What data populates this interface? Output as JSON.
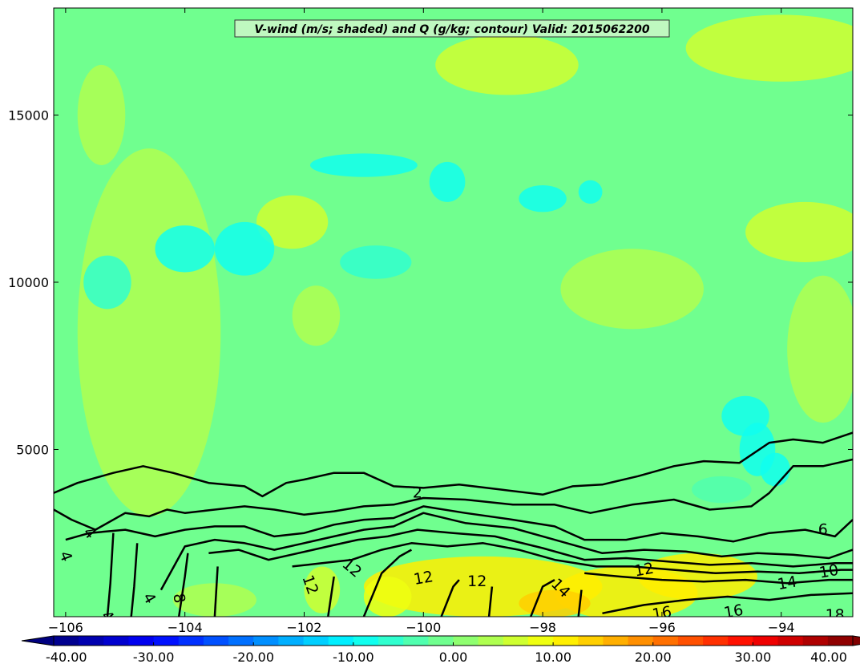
{
  "chart_data": {
    "type": "heatmap",
    "title": "V-wind (m/s; shaded) and Q (g/kg; contour) Valid: 2015062200",
    "xlabel": "",
    "ylabel": "",
    "xlim": [
      -106.2,
      -92.8
    ],
    "ylim": [
      0,
      18200
    ],
    "x_ticks": [
      -106,
      -104,
      -102,
      -100,
      -98,
      -96,
      -94
    ],
    "x_tick_labels": [
      "−106",
      "−104",
      "−102",
      "−100",
      "−98",
      "−96",
      "−94"
    ],
    "y_ticks": [
      5000,
      10000,
      15000
    ],
    "y_tick_labels": [
      "5000",
      "10000",
      "15000"
    ],
    "colorbar": {
      "min": -40,
      "max": 40,
      "step": 2.5,
      "extend": "both",
      "ticks": [
        -40,
        -30,
        -20,
        -10,
        0,
        10,
        20,
        30,
        40
      ],
      "tick_labels": [
        "-40.00",
        "-30.00",
        "-20.00",
        "-10.00",
        "0.00",
        "10.00",
        "20.00",
        "30.00",
        "40.00"
      ],
      "colormap": "jet"
    },
    "shading_background_value": -2,
    "shading_features": [
      {
        "x": -104.6,
        "y": 8500,
        "rx": 1.2,
        "ry": 5500,
        "value": 3
      },
      {
        "x": -102.2,
        "y": 11800,
        "rx": 0.6,
        "ry": 800,
        "value": 5
      },
      {
        "x": -101.8,
        "y": 9000,
        "rx": 0.4,
        "ry": 900,
        "value": 4
      },
      {
        "x": -98.6,
        "y": 16500,
        "rx": 1.2,
        "ry": 900,
        "value": 5
      },
      {
        "x": -96.5,
        "y": 9800,
        "rx": 1.2,
        "ry": 1200,
        "value": 3
      },
      {
        "x": -94.0,
        "y": 17000,
        "rx": 1.6,
        "ry": 1000,
        "value": 5
      },
      {
        "x": -93.6,
        "y": 11500,
        "rx": 1.0,
        "ry": 900,
        "value": 6
      },
      {
        "x": -93.3,
        "y": 8000,
        "rx": 0.6,
        "ry": 2200,
        "value": 4
      },
      {
        "x": -105.4,
        "y": 15000,
        "rx": 0.4,
        "ry": 1500,
        "value": 4
      },
      {
        "x": -101.0,
        "y": 13500,
        "rx": 0.9,
        "ry": 350,
        "value": -8
      },
      {
        "x": -99.6,
        "y": 13000,
        "rx": 0.3,
        "ry": 600,
        "value": -8
      },
      {
        "x": -98.0,
        "y": 12500,
        "rx": 0.4,
        "ry": 400,
        "value": -9
      },
      {
        "x": -97.2,
        "y": 12700,
        "rx": 0.2,
        "ry": 350,
        "value": -8
      },
      {
        "x": -104.0,
        "y": 11000,
        "rx": 0.5,
        "ry": 700,
        "value": -8
      },
      {
        "x": -103.0,
        "y": 11000,
        "rx": 0.5,
        "ry": 800,
        "value": -8
      },
      {
        "x": -105.3,
        "y": 10000,
        "rx": 0.4,
        "ry": 800,
        "value": -7
      },
      {
        "x": -100.8,
        "y": 10600,
        "rx": 0.6,
        "ry": 500,
        "value": -6
      },
      {
        "x": -94.6,
        "y": 6000,
        "rx": 0.4,
        "ry": 600,
        "value": -9
      },
      {
        "x": -94.4,
        "y": 5000,
        "rx": 0.3,
        "ry": 800,
        "value": -10
      },
      {
        "x": -94.1,
        "y": 4400,
        "rx": 0.25,
        "ry": 500,
        "value": -9
      },
      {
        "x": -95.0,
        "y": 3800,
        "rx": 0.5,
        "ry": 400,
        "value": -3
      },
      {
        "x": -99.0,
        "y": 900,
        "rx": 2.0,
        "ry": 900,
        "value": 11
      },
      {
        "x": -96.6,
        "y": 700,
        "rx": 1.2,
        "ry": 800,
        "value": 12
      },
      {
        "x": -95.4,
        "y": 1200,
        "rx": 1.0,
        "ry": 700,
        "value": 10
      },
      {
        "x": -100.6,
        "y": 600,
        "rx": 0.4,
        "ry": 600,
        "value": 8
      },
      {
        "x": -101.7,
        "y": 800,
        "rx": 0.3,
        "ry": 700,
        "value": 6
      },
      {
        "x": -103.5,
        "y": 500,
        "rx": 0.7,
        "ry": 500,
        "value": 3
      },
      {
        "x": -97.8,
        "y": 400,
        "rx": 0.6,
        "ry": 400,
        "value": 14
      }
    ],
    "contour_lines": [
      {
        "level": 2,
        "x": [
          -106.2,
          -105.8,
          -105.2,
          -104.7,
          -104.2,
          -103.6,
          -103.0,
          -102.7,
          -102.3,
          -102.0,
          -101.5,
          -101.0,
          -100.5,
          -100.0,
          -99.4,
          -98.7,
          -98.0,
          -97.5,
          -97.0,
          -96.4,
          -95.8,
          -95.3,
          -94.7,
          -94.2,
          -93.8,
          -93.3,
          -92.8
        ],
        "y": [
          3700,
          4000,
          4300,
          4500,
          4300,
          4000,
          3900,
          3600,
          4000,
          4100,
          4300,
          4300,
          3900,
          3850,
          3950,
          3800,
          3650,
          3900,
          3950,
          4200,
          4500,
          4650,
          4600,
          5200,
          5300,
          5200,
          5500
        ]
      },
      {
        "level": 4,
        "x": [
          -106.2,
          -105.9,
          -105.5,
          -105.0,
          -104.6,
          -104.3,
          -104.0,
          -103.5,
          -103.0,
          -102.5,
          -102.0,
          -101.5,
          -101.0,
          -100.5,
          -100.0,
          -99.3,
          -98.5,
          -97.8,
          -97.2,
          -96.5,
          -95.8,
          -95.2,
          -94.5,
          -94.2,
          -93.8,
          -93.3,
          -92.8
        ],
        "y": [
          3200,
          2900,
          2600,
          3100,
          3000,
          3200,
          3100,
          3200,
          3300,
          3200,
          3050,
          3150,
          3300,
          3350,
          3550,
          3500,
          3350,
          3350,
          3100,
          3350,
          3500,
          3200,
          3300,
          3700,
          4500,
          4500,
          4700
        ]
      },
      {
        "level": 6,
        "x": [
          -106.0,
          -105.6,
          -105.0,
          -104.5,
          -104.0,
          -103.5,
          -103.0,
          -102.5,
          -102.0,
          -101.5,
          -101.0,
          -100.5,
          -100.0,
          -99.3,
          -98.5,
          -97.8,
          -97.3,
          -96.6,
          -96.0,
          -95.4,
          -94.8,
          -94.2,
          -93.6,
          -93.1,
          -92.8
        ],
        "y": [
          2300,
          2500,
          2600,
          2400,
          2600,
          2700,
          2700,
          2400,
          2500,
          2750,
          2900,
          2950,
          3300,
          3100,
          2900,
          2700,
          2300,
          2300,
          2500,
          2400,
          2250,
          2500,
          2600,
          2400,
          2900
        ]
      },
      {
        "level": 8,
        "x": [
          -104.4,
          -104.0,
          -103.5,
          -103.0,
          -102.5,
          -102.0,
          -101.5,
          -101.0,
          -100.5,
          -100.0,
          -99.3,
          -98.5,
          -97.8,
          -97.0,
          -96.3,
          -95.6,
          -95.0,
          -94.4,
          -93.8,
          -93.2,
          -92.8
        ],
        "y": [
          800,
          2100,
          2300,
          2200,
          2000,
          2200,
          2400,
          2600,
          2700,
          3100,
          2800,
          2650,
          2300,
          1900,
          2000,
          1950,
          1800,
          1900,
          1850,
          1750,
          2000
        ]
      },
      {
        "level": 10,
        "x": [
          -103.6,
          -103.1,
          -102.6,
          -102.1,
          -101.6,
          -101.1,
          -100.6,
          -100.1,
          -99.5,
          -98.8,
          -98.0,
          -97.3,
          -96.6,
          -95.9,
          -95.2,
          -94.5,
          -93.8,
          -93.1,
          -92.8
        ],
        "y": [
          1900,
          2000,
          1700,
          1900,
          2100,
          2300,
          2400,
          2600,
          2500,
          2400,
          2050,
          1700,
          1750,
          1650,
          1550,
          1600,
          1500,
          1600,
          1600
        ]
      },
      {
        "level": 12,
        "x": [
          -102.2,
          -101.7,
          -101.2,
          -100.7,
          -100.2,
          -99.6,
          -99.0,
          -98.4,
          -97.8,
          -97.1,
          -96.5,
          -95.8,
          -95.1,
          -94.4,
          -93.7,
          -93.0,
          -92.8
        ],
        "y": [
          1500,
          1600,
          1700,
          2000,
          2200,
          2100,
          2200,
          2000,
          1700,
          1500,
          1500,
          1400,
          1300,
          1350,
          1300,
          1400,
          1400
        ]
      },
      {
        "level": 14,
        "x": [
          -97.3,
          -96.7,
          -96.0,
          -95.3,
          -94.6,
          -93.9,
          -93.2,
          -92.8
        ],
        "y": [
          1300,
          1200,
          1100,
          1050,
          1100,
          1000,
          1100,
          1100
        ]
      },
      {
        "level": 16,
        "x": [
          -97.0,
          -96.3,
          -95.6,
          -94.9,
          -94.2,
          -93.5,
          -92.8
        ],
        "y": [
          100,
          350,
          500,
          600,
          500,
          650,
          700
        ]
      },
      {
        "level": 12,
        "x": [
          -101.0,
          -100.7,
          -100.4,
          -100.2
        ],
        "y": [
          0,
          1300,
          1800,
          2000
        ]
      },
      {
        "level": 12,
        "x": [
          -99.7,
          -99.5,
          -99.4
        ],
        "y": [
          0,
          900,
          1100
        ]
      },
      {
        "level": 14,
        "x": [
          -98.2,
          -98.0,
          -97.8
        ],
        "y": [
          0,
          900,
          1100
        ]
      },
      {
        "level": 4,
        "x": [
          -105.3,
          -105.25,
          -105.2
        ],
        "y": [
          0,
          1000,
          2500
        ]
      },
      {
        "level": 4,
        "x": [
          -104.9,
          -104.85,
          -104.8
        ],
        "y": [
          0,
          900,
          2200
        ]
      },
      {
        "level": 6,
        "x": [
          -104.1,
          -104.0,
          -103.95
        ],
        "y": [
          0,
          1200,
          1900
        ]
      },
      {
        "level": 8,
        "x": [
          -103.5,
          -103.45
        ],
        "y": [
          0,
          1500
        ]
      },
      {
        "level": 12,
        "x": [
          -101.6,
          -101.5
        ],
        "y": [
          0,
          1200
        ]
      },
      {
        "level": 16,
        "x": [
          -98.9,
          -98.85
        ],
        "y": [
          0,
          900
        ]
      },
      {
        "level": 16,
        "x": [
          -97.4,
          -97.35
        ],
        "y": [
          0,
          800
        ]
      }
    ],
    "contour_labels": [
      {
        "text": "2",
        "x": -100.1,
        "y": 3700,
        "angle": 0
      },
      {
        "text": "4",
        "x": -105.6,
        "y": 2500,
        "angle": 50
      },
      {
        "text": "4",
        "x": -106.0,
        "y": 1800,
        "angle": 70
      },
      {
        "text": "4",
        "x": -104.6,
        "y": 550,
        "angle": 60
      },
      {
        "text": "4",
        "x": -105.3,
        "y": 0,
        "angle": 50
      },
      {
        "text": "8",
        "x": -104.1,
        "y": 550,
        "angle": 80
      },
      {
        "text": "12",
        "x": -101.9,
        "y": 950,
        "angle": 70
      },
      {
        "text": "12",
        "x": -101.2,
        "y": 1450,
        "angle": 40
      },
      {
        "text": "12",
        "x": -100.0,
        "y": 1150,
        "angle": -10
      },
      {
        "text": "12",
        "x": -99.1,
        "y": 1050,
        "angle": 0
      },
      {
        "text": "14",
        "x": -97.7,
        "y": 850,
        "angle": 45
      },
      {
        "text": "6",
        "x": -93.3,
        "y": 2600,
        "angle": 0
      },
      {
        "text": "16",
        "x": -96.0,
        "y": 100,
        "angle": -10
      },
      {
        "text": "16",
        "x": -94.8,
        "y": 150,
        "angle": -10
      },
      {
        "text": "14",
        "x": -93.9,
        "y": 1000,
        "angle": -10
      },
      {
        "text": "10",
        "x": -93.2,
        "y": 1350,
        "angle": -10
      },
      {
        "text": "18",
        "x": -93.1,
        "y": 50,
        "angle": 0
      },
      {
        "text": "12",
        "x": -96.3,
        "y": 1400,
        "angle": -10
      }
    ]
  }
}
